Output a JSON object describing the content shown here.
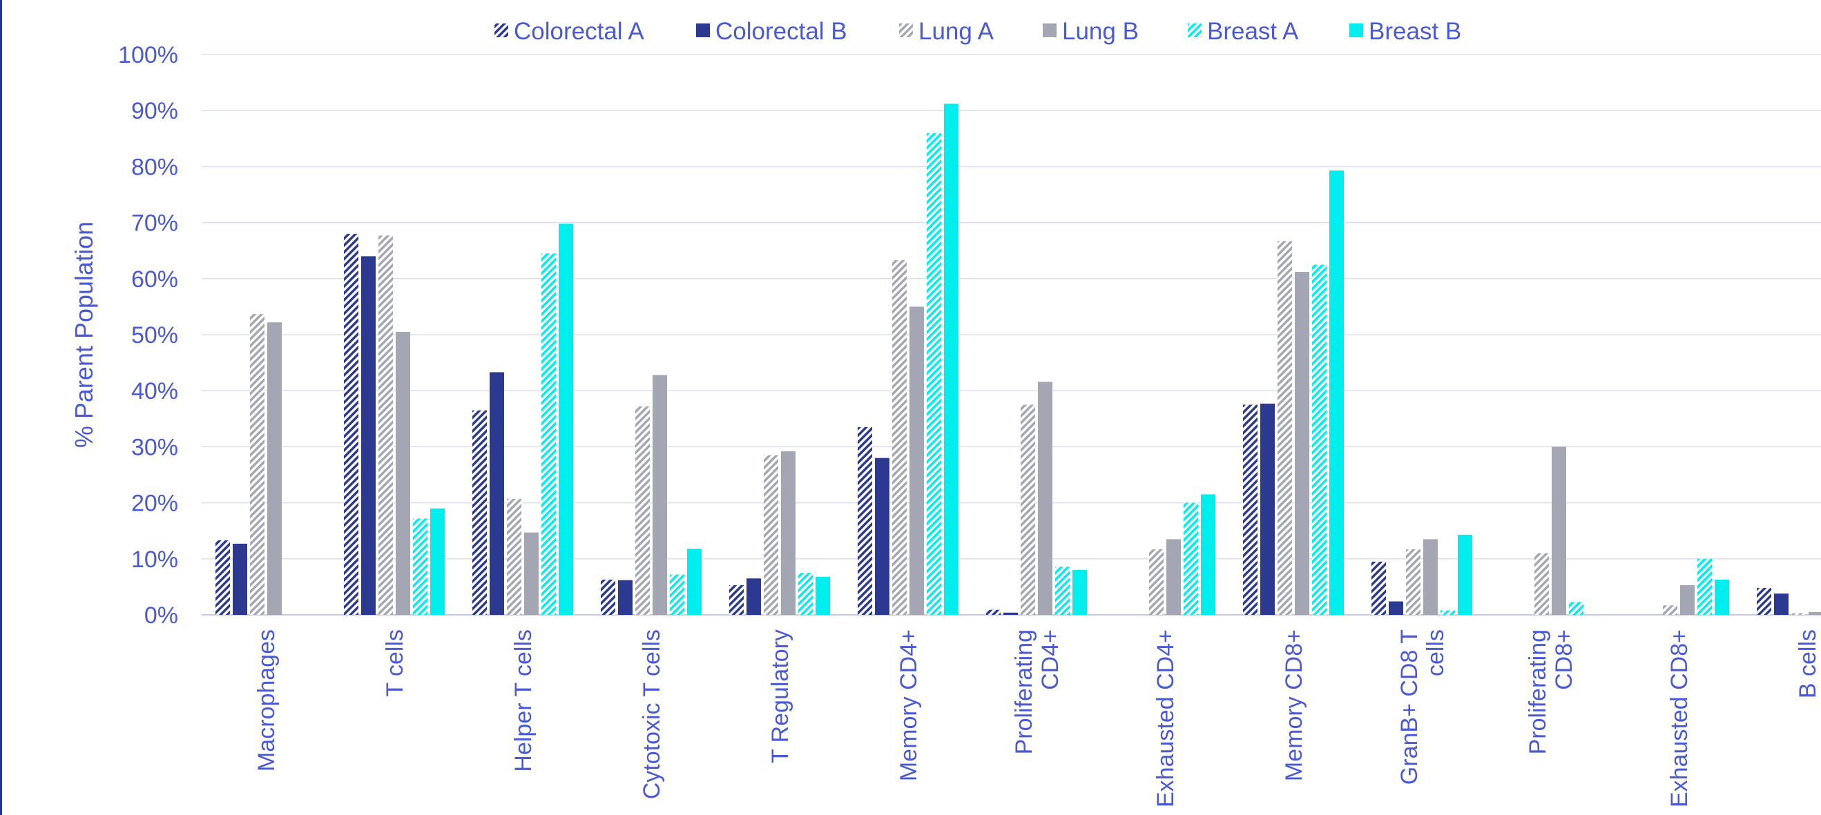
{
  "chart_data": {
    "type": "bar",
    "title": "",
    "xlabel": "",
    "ylabel": "% Parent Population",
    "ylim": [
      0,
      100
    ],
    "y_ticks": [
      "0%",
      "10%",
      "20%",
      "30%",
      "40%",
      "50%",
      "60%",
      "70%",
      "80%",
      "90%",
      "100%"
    ],
    "grid": true,
    "legend_position": "top",
    "categories": [
      "Macrophages",
      "T cells",
      "Helper T cells",
      "Cytotoxic T cells",
      "T Regulatory",
      "Memory CD4+",
      "Proliferating CD4+",
      "Exhausted CD4+",
      "Memory CD8+",
      "GranB+ CD8 T cells",
      "Proliferating CD8+",
      "Exhausted CD8+",
      "B cells"
    ],
    "category_label_lines": [
      [
        "Macrophages"
      ],
      [
        "T cells"
      ],
      [
        "Helper T cells"
      ],
      [
        "Cytotoxic T cells"
      ],
      [
        "T Regulatory"
      ],
      [
        "Memory CD4+"
      ],
      [
        "Proliferating",
        "CD4+"
      ],
      [
        "Exhausted CD4+"
      ],
      [
        "Memory CD8+"
      ],
      [
        "GranB+ CD8 T",
        "cells"
      ],
      [
        "Proliferating",
        "CD8+"
      ],
      [
        "Exhausted CD8+"
      ],
      [
        "B cells"
      ]
    ],
    "series": [
      {
        "name": "Colorectal A",
        "pattern": "hatched",
        "color": "#2b3990",
        "values": [
          13.3,
          68,
          36.5,
          6.3,
          5.3,
          33.5,
          0.9,
          0,
          37.5,
          9.5,
          0,
          0,
          4.8
        ]
      },
      {
        "name": "Colorectal B",
        "pattern": "solid",
        "color": "#2b3990",
        "values": [
          12.7,
          64,
          43.3,
          6.2,
          6.5,
          28,
          0.4,
          0,
          37.7,
          2.4,
          0,
          0,
          3.8
        ]
      },
      {
        "name": "Lung A",
        "pattern": "hatched",
        "color": "#a4a7b3",
        "values": [
          53.7,
          67.7,
          20.7,
          37.2,
          28.5,
          63.3,
          37.5,
          11.7,
          66.7,
          11.7,
          11,
          1.7,
          0.3
        ]
      },
      {
        "name": "Lung B",
        "pattern": "solid",
        "color": "#a4a7b3",
        "values": [
          52.2,
          50.5,
          14.7,
          42.8,
          29.2,
          55,
          41.6,
          13.5,
          61.2,
          13.5,
          30,
          5.3,
          0.5
        ]
      },
      {
        "name": "Breast A",
        "pattern": "hatched",
        "color": "#00eeee",
        "values": [
          0,
          17.2,
          64.5,
          7.2,
          7.5,
          86,
          8.6,
          20,
          62.5,
          0.8,
          2.3,
          10,
          0
        ]
      },
      {
        "name": "Breast B",
        "pattern": "solid",
        "color": "#00eeee",
        "values": [
          0,
          19,
          69.8,
          11.8,
          6.8,
          91.2,
          8,
          21.5,
          79.3,
          14.3,
          0,
          6.3,
          0
        ]
      }
    ]
  }
}
